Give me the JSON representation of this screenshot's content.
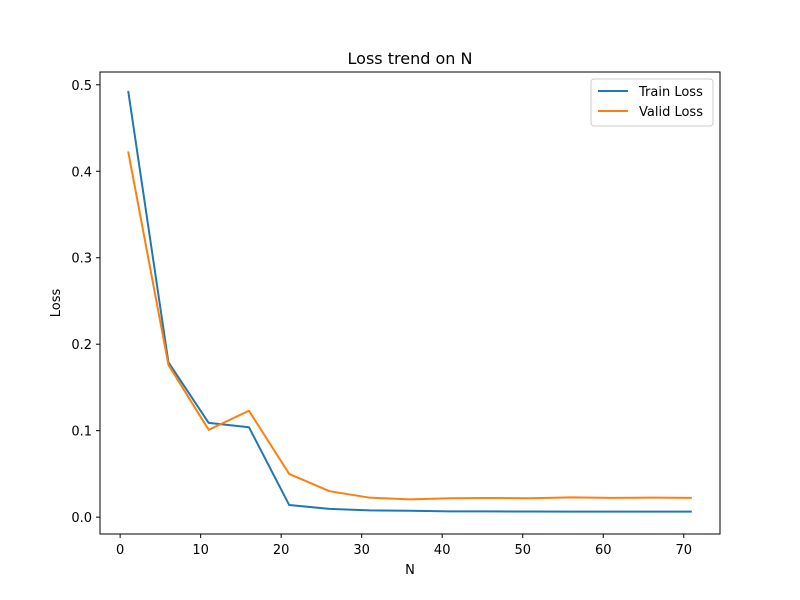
{
  "chart_data": {
    "type": "line",
    "title": "Loss trend on N",
    "xlabel": "N",
    "ylabel": "Loss",
    "xlim": [
      -2.5,
      74.5
    ],
    "ylim": [
      -0.0195,
      0.5148
    ],
    "xticks": [
      0,
      10,
      20,
      30,
      40,
      50,
      60,
      70
    ],
    "yticks": [
      0.0,
      0.1,
      0.2,
      0.3,
      0.4,
      0.5
    ],
    "xtick_labels": [
      "0",
      "10",
      "20",
      "30",
      "40",
      "50",
      "60",
      "70"
    ],
    "ytick_labels": [
      "0.0",
      "0.1",
      "0.2",
      "0.3",
      "0.4",
      "0.5"
    ],
    "grid": false,
    "legend_position": "top-right",
    "x": [
      1,
      6,
      11,
      16,
      21,
      26,
      31,
      36,
      41,
      46,
      51,
      56,
      61,
      66,
      71
    ],
    "series": [
      {
        "name": "Train Loss",
        "color": "#1f77b4",
        "values": [
          0.493,
          0.179,
          0.109,
          0.104,
          0.014,
          0.0095,
          0.0078,
          0.0074,
          0.0067,
          0.0066,
          0.0065,
          0.0064,
          0.0064,
          0.0064,
          0.0064
        ]
      },
      {
        "name": "Valid Loss",
        "color": "#ff7f0e",
        "values": [
          0.423,
          0.176,
          0.101,
          0.123,
          0.05,
          0.03,
          0.0225,
          0.0205,
          0.0218,
          0.0221,
          0.0218,
          0.0228,
          0.0223,
          0.0225,
          0.0223
        ]
      }
    ]
  }
}
